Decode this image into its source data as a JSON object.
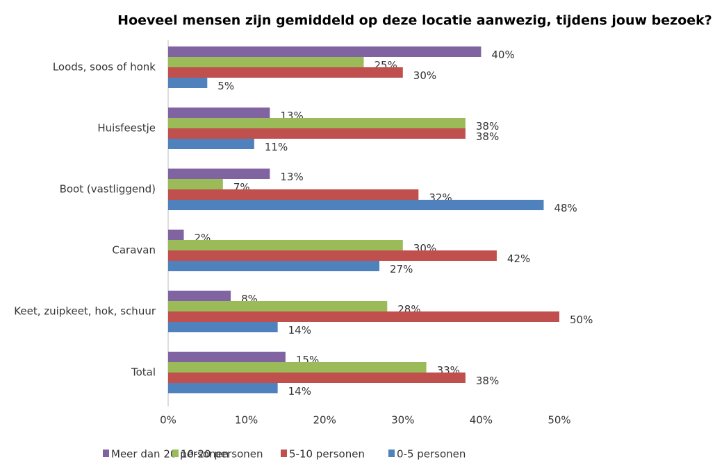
{
  "chart_data": {
    "type": "barh",
    "title": "Hoeveel mensen zijn gemiddeld op deze locatie aanwezig, tijdens jouw bezoek?",
    "categories": [
      "Loods, soos of honk",
      "Huisfeestje",
      "Boot (vastliggend)",
      "Caravan",
      "Keet, zuipkeet, hok, schuur",
      "Total"
    ],
    "series": [
      {
        "name": "Meer dan 20 personen",
        "color": "#8064a2",
        "values": [
          40,
          13,
          13,
          2,
          8,
          15
        ],
        "value_labels": [
          "40%",
          "13%",
          "13%",
          "2%",
          "8%",
          "15%"
        ]
      },
      {
        "name": "10-20 personen",
        "color": "#9bbb59",
        "values": [
          25,
          38,
          7,
          30,
          28,
          33
        ],
        "value_labels": [
          "25%",
          "38%",
          "7%",
          "30%",
          "28%",
          "33%"
        ]
      },
      {
        "name": "5-10 personen",
        "color": "#c0504d",
        "values": [
          30,
          38,
          32,
          42,
          50,
          38
        ],
        "value_labels": [
          "30%",
          "38%",
          "32%",
          "42%",
          "50%",
          "38%"
        ]
      },
      {
        "name": "0-5 personen",
        "color": "#4f81bd",
        "values": [
          5,
          11,
          48,
          27,
          14,
          14
        ],
        "value_labels": [
          "5%",
          "11%",
          "48%",
          "27%",
          "14%",
          "14%"
        ]
      }
    ],
    "xlim": [
      0,
      50
    ],
    "xticks": [
      {
        "value": 0,
        "label": "0%"
      },
      {
        "value": 10,
        "label": "10%"
      },
      {
        "value": 20,
        "label": "20%"
      },
      {
        "value": 30,
        "label": "30%"
      },
      {
        "value": 40,
        "label": "40%"
      },
      {
        "value": 50,
        "label": "50%"
      }
    ],
    "legend": "bottom"
  }
}
